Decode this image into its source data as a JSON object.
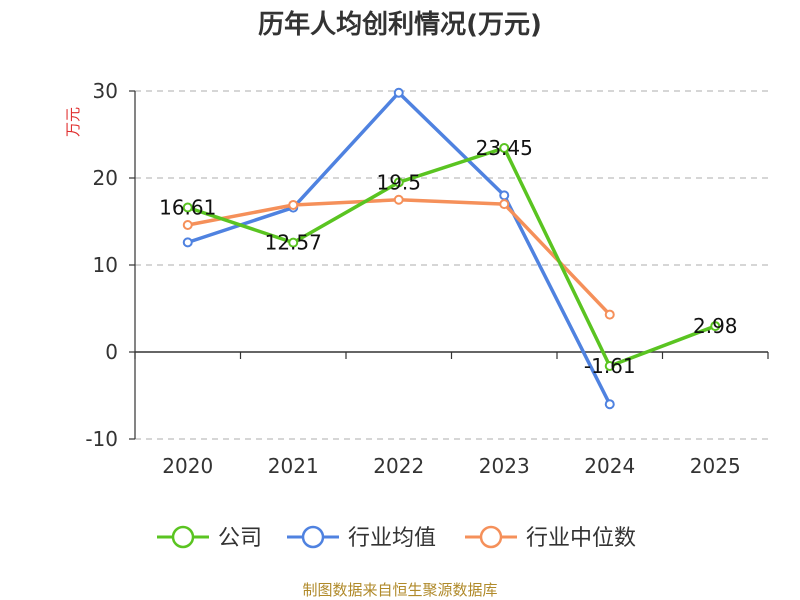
{
  "chart_data": {
    "type": "line",
    "title": "历年人均创利情况(万元)",
    "ylabel": "万元",
    "xlabel": "",
    "categories": [
      "2020",
      "2021",
      "2022",
      "2023",
      "2024",
      "2025"
    ],
    "ylim": [
      -10,
      30
    ],
    "yticks": [
      30,
      20,
      10,
      0,
      -10
    ],
    "grid": true,
    "legend_position": "bottom",
    "series": [
      {
        "name": "公司",
        "color": "#5ac421",
        "values": [
          16.61,
          12.57,
          19.5,
          23.45,
          -1.61,
          2.98
        ],
        "labels": [
          "16.61",
          "12.57",
          "19.5",
          "23.45",
          "-1.61",
          "2.98"
        ]
      },
      {
        "name": "行业均值",
        "color": "#4f82e0",
        "values": [
          12.6,
          16.6,
          29.8,
          18.0,
          -6.0,
          null
        ]
      },
      {
        "name": "行业中位数",
        "color": "#f5905a",
        "values": [
          14.6,
          16.9,
          17.5,
          17.0,
          4.3,
          null
        ]
      }
    ],
    "source": "制图数据来自恒生聚源数据库"
  }
}
